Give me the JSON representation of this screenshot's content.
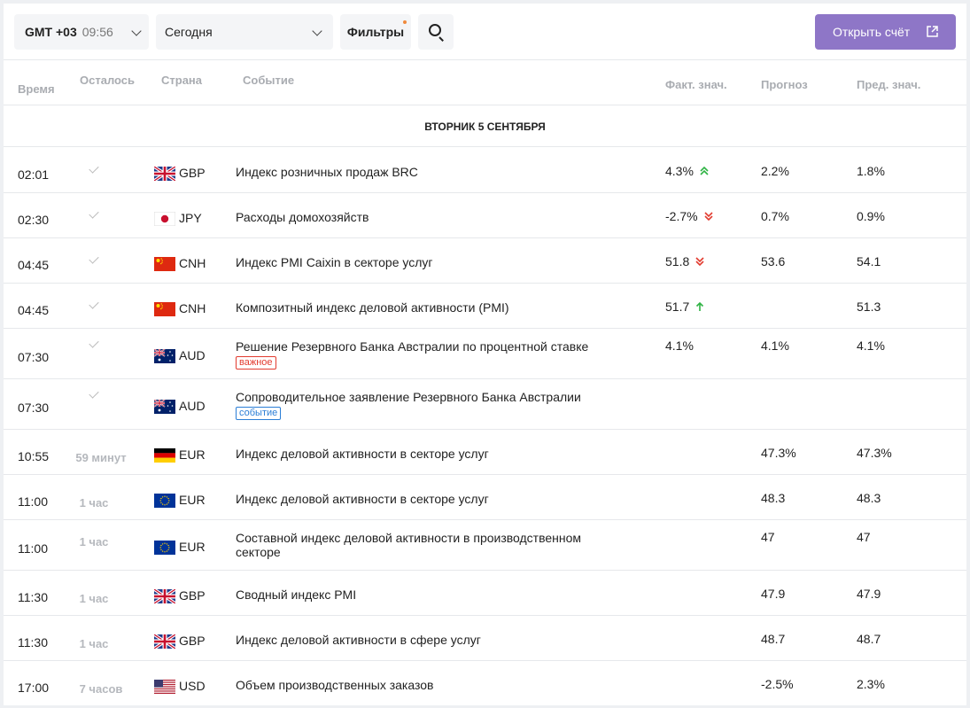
{
  "toolbar": {
    "timezone": "GMT +03",
    "clock": "09:56",
    "day": "Сегодня",
    "filters": "Фильтры",
    "open_account": "Открыть счёт"
  },
  "columns": {
    "time": "Время",
    "left": "Осталось",
    "country": "Страна",
    "event": "Событие",
    "actual": "Факт. знач.",
    "forecast": "Прогноз",
    "previous": "Пред. знач."
  },
  "day_header": "ВТОРНИК 5 СЕНТЯБРЯ",
  "rows": [
    {
      "time": "02:01",
      "left": "",
      "done": true,
      "flag": "gb",
      "currency": "GBP",
      "event": "Индекс розничных продаж BRC",
      "badge": "",
      "actual": "4.3%",
      "trend": "up2",
      "forecast": "2.2%",
      "previous": "1.8%"
    },
    {
      "time": "02:30",
      "left": "",
      "done": true,
      "flag": "jp",
      "currency": "JPY",
      "event": "Расходы домохозяйств",
      "badge": "",
      "actual": "-2.7%",
      "trend": "down2",
      "forecast": "0.7%",
      "previous": "0.9%"
    },
    {
      "time": "04:45",
      "left": "",
      "done": true,
      "flag": "cn",
      "currency": "CNH",
      "event": "Индекс PMI Caixin в секторе услуг",
      "badge": "",
      "actual": "51.8",
      "trend": "down2",
      "forecast": "53.6",
      "previous": "54.1"
    },
    {
      "time": "04:45",
      "left": "",
      "done": true,
      "flag": "cn",
      "currency": "CNH",
      "event": "Композитный индекс деловой активности (PMI)",
      "badge": "",
      "actual": "51.7",
      "trend": "up1",
      "forecast": "",
      "previous": "51.3"
    },
    {
      "time": "07:30",
      "left": "",
      "done": true,
      "flag": "au",
      "currency": "AUD",
      "event": "Решение Резервного Банка Австралии по процентной ставке",
      "badge": "важное",
      "badge_type": "imp",
      "actual": "4.1%",
      "trend": "",
      "forecast": "4.1%",
      "previous": "4.1%"
    },
    {
      "time": "07:30",
      "left": "",
      "done": true,
      "flag": "au",
      "currency": "AUD",
      "event": "Сопроводительное заявление Резервного Банка Австралии",
      "badge": "событие",
      "badge_type": "ev",
      "actual": "",
      "trend": "",
      "forecast": "",
      "previous": ""
    },
    {
      "time": "10:55",
      "left": "59 минут",
      "done": false,
      "flag": "de",
      "currency": "EUR",
      "event": "Индекс деловой активности в секторе услуг",
      "badge": "",
      "actual": "",
      "trend": "",
      "forecast": "47.3%",
      "previous": "47.3%"
    },
    {
      "time": "11:00",
      "left": "1 час",
      "done": false,
      "flag": "eu",
      "currency": "EUR",
      "event": "Индекс деловой активности в секторе услуг",
      "badge": "",
      "actual": "",
      "trend": "",
      "forecast": "48.3",
      "previous": "48.3"
    },
    {
      "time": "11:00",
      "left": "1 час",
      "done": false,
      "flag": "eu",
      "currency": "EUR",
      "event": "Составной индекс деловой активности в производственном секторе",
      "badge": "",
      "actual": "",
      "trend": "",
      "forecast": "47",
      "previous": "47"
    },
    {
      "time": "11:30",
      "left": "1 час",
      "done": false,
      "flag": "gb",
      "currency": "GBP",
      "event": "Сводный индекс PMI",
      "badge": "",
      "actual": "",
      "trend": "",
      "forecast": "47.9",
      "previous": "47.9"
    },
    {
      "time": "11:30",
      "left": "1 час",
      "done": false,
      "flag": "gb",
      "currency": "GBP",
      "event": "Индекс деловой активности в сфере услуг",
      "badge": "",
      "actual": "",
      "trend": "",
      "forecast": "48.7",
      "previous": "48.7"
    },
    {
      "time": "17:00",
      "left": "7 часов",
      "done": false,
      "flag": "us",
      "currency": "USD",
      "event": "Объем производственных заказов",
      "badge": "",
      "actual": "",
      "trend": "",
      "forecast": "-2.5%",
      "previous": "2.3%"
    }
  ],
  "colors": {
    "accent": "#8e76c7",
    "up": "#2fb344",
    "down": "#e23b2f",
    "important": "#e23b2f",
    "event": "#2b7ed6"
  }
}
